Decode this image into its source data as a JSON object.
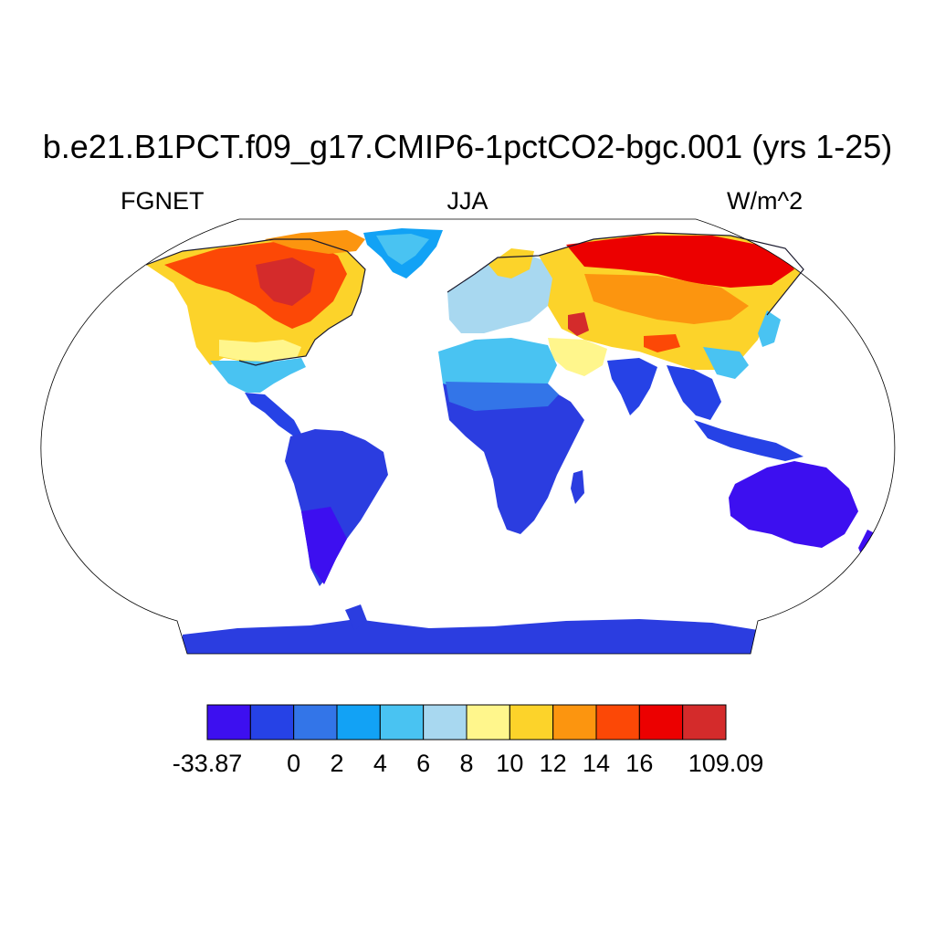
{
  "title": "b.e21.B1PCT.f09_g17.CMIP6-1pctCO2-bgc.001 (yrs 1-25)",
  "left_string": "FGNET",
  "center_string": "JJA",
  "right_string": "W/m^2",
  "colorbar": {
    "colors": [
      "#3d0ff0",
      "#2642e6",
      "#3375e8",
      "#12a2f5",
      "#49c3f2",
      "#a8d8f0",
      "#fff68c",
      "#fcd32a",
      "#fc950f",
      "#fc4806",
      "#ec0000",
      "#d42b2b"
    ],
    "labels": [
      "-33.87",
      "0",
      "2",
      "4",
      "6",
      "8",
      "10",
      "12",
      "14",
      "16",
      "109.09"
    ]
  },
  "map": {
    "projection": "robinson",
    "land_color": "#2b3de0",
    "ocean_color": "#ffffff"
  }
}
